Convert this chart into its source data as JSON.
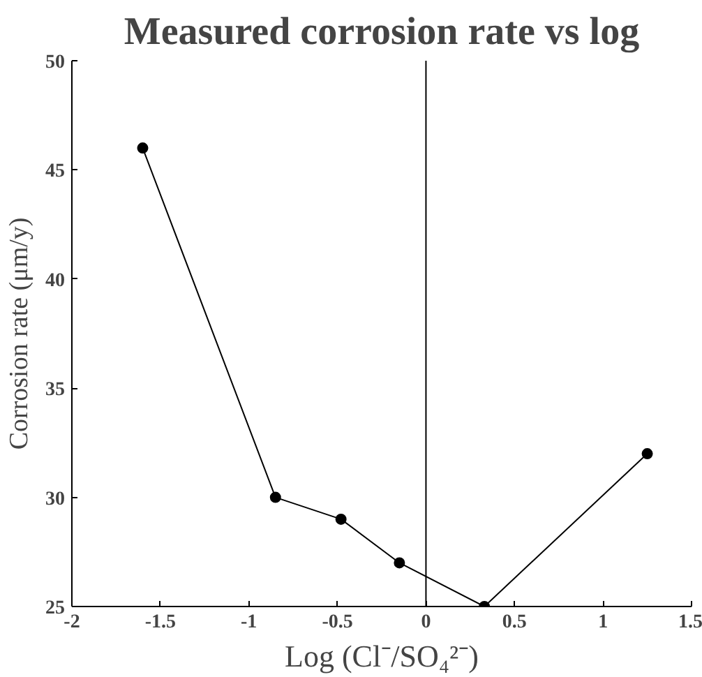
{
  "chart_data": {
    "type": "line",
    "title": "Measured corrosion rate vs log",
    "xlabel": "Log (Cl⁻/SO₄²⁻)",
    "ylabel": "Corrosion rate (μm/y)",
    "x": [
      -1.6,
      -0.85,
      -0.48,
      -0.15,
      0.33,
      1.25
    ],
    "series": [
      {
        "color": "#000000",
        "values": [
          46,
          30,
          29,
          27,
          25,
          32
        ]
      }
    ],
    "xlim": [
      -2,
      1.5
    ],
    "ylim": [
      25,
      50
    ],
    "xticks": [
      -2,
      -1.5,
      -1,
      -0.5,
      0,
      0.5,
      1,
      1.5
    ],
    "yticks": [
      25,
      30,
      35,
      40,
      45,
      50
    ],
    "ref_lines": [
      {
        "axis": "x",
        "value": 0,
        "color": "#000000"
      }
    ],
    "grid": false,
    "marker": "circle",
    "line_style": "solid"
  }
}
